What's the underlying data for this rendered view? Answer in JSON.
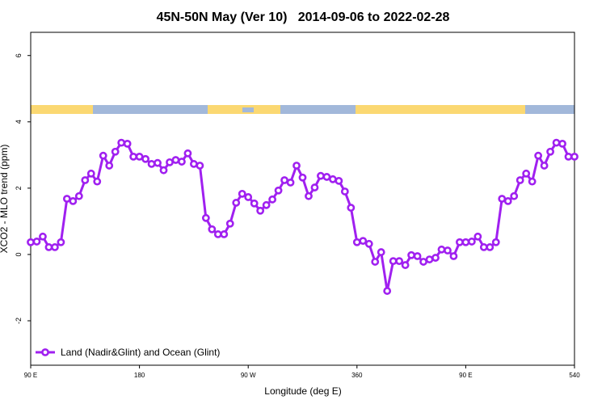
{
  "chart_data": {
    "type": "line",
    "title": "45N-50N May (Ver 10)   2014-09-06 to 2022-02-28",
    "xlabel": "Longitude (deg E)",
    "ylabel": "XCO2 - MLO trend (ppm)",
    "x": [
      90,
      95,
      100,
      105,
      110,
      115,
      120,
      125,
      130,
      135,
      140,
      145,
      150,
      155,
      160,
      165,
      170,
      175,
      180,
      185,
      190,
      195,
      200,
      205,
      210,
      215,
      220,
      225,
      230,
      235,
      240,
      245,
      250,
      255,
      260,
      265,
      270,
      275,
      280,
      285,
      290,
      295,
      300,
      305,
      310,
      315,
      320,
      325,
      330,
      335,
      340,
      345,
      350,
      355,
      360,
      365,
      370,
      375,
      380,
      385,
      390,
      395,
      400,
      405,
      410,
      415,
      420,
      425,
      430,
      435,
      440,
      445,
      450,
      455,
      460,
      465,
      470,
      475,
      480,
      485,
      490,
      495,
      500,
      505,
      510,
      515,
      520,
      525,
      530,
      535,
      540
    ],
    "series": [
      {
        "name": "Land (Nadir&Glint) and Ocean (Glint)",
        "color": "#a020f0",
        "values": [
          0.37,
          0.39,
          0.54,
          0.22,
          0.22,
          0.37,
          1.68,
          1.61,
          1.76,
          2.24,
          2.44,
          2.2,
          2.98,
          2.68,
          3.1,
          3.37,
          3.34,
          2.95,
          2.95,
          2.88,
          2.73,
          2.76,
          2.54,
          2.78,
          2.85,
          2.8,
          3.05,
          2.73,
          2.68,
          1.1,
          0.76,
          0.61,
          0.61,
          0.93,
          1.56,
          1.83,
          1.73,
          1.54,
          1.32,
          1.49,
          1.66,
          1.93,
          2.24,
          2.17,
          2.68,
          2.32,
          1.76,
          2.02,
          2.37,
          2.34,
          2.27,
          2.22,
          1.9,
          1.41,
          0.37,
          0.41,
          0.32,
          -0.22,
          0.07,
          -1.1,
          -0.2,
          -0.2,
          -0.32,
          -0.02,
          -0.05,
          -0.22,
          -0.15,
          -0.1,
          0.15,
          0.12,
          -0.05,
          0.37,
          0.37,
          0.39,
          0.54,
          0.22,
          0.22,
          0.37,
          1.68,
          1.61,
          1.76,
          2.24,
          2.44,
          2.2,
          2.98,
          2.68,
          3.1,
          3.37,
          3.34,
          2.95,
          2.95
        ]
      }
    ],
    "xlim": [
      90,
      540
    ],
    "xticks": [
      {
        "value": 90,
        "label": "90 E"
      },
      180,
      {
        "value": 270,
        "label": "90 W"
      },
      360,
      {
        "value": 450,
        "label": "90 E"
      },
      540
    ],
    "ylim": [
      -3.34,
      6.7
    ],
    "yticks": [
      -2,
      0,
      2,
      4,
      6
    ],
    "grid": false,
    "legend": "bottom-left"
  }
}
